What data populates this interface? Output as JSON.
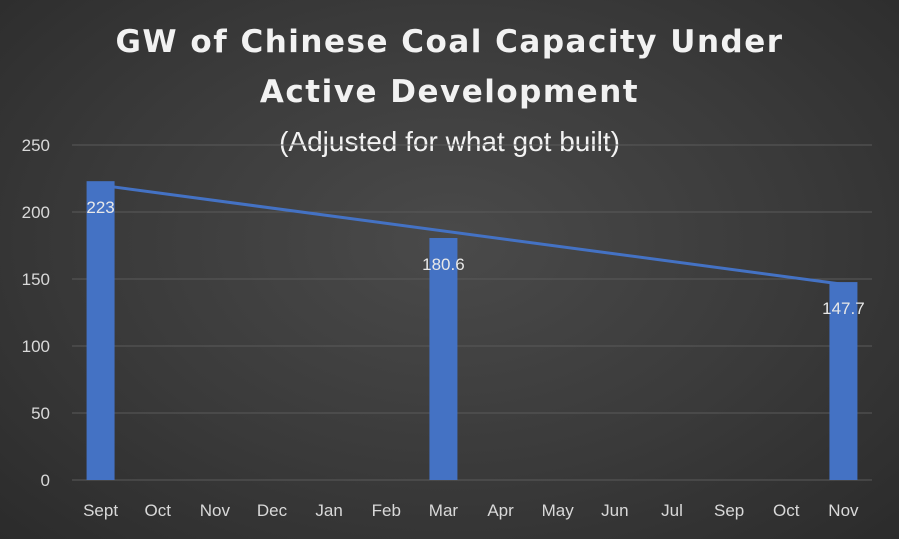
{
  "chart_data": {
    "type": "bar",
    "title_line1": "GW of Chinese Coal Capacity Under",
    "title_line2": "Active Development",
    "subtitle": "(Adjusted for what got built)",
    "xlabel": "",
    "ylabel": "",
    "categories": [
      "Sept",
      "Oct",
      "Nov",
      "Dec",
      "Jan",
      "Feb",
      "Mar",
      "Apr",
      "May",
      "Jun",
      "Jul",
      "Sep",
      "Oct",
      "Nov"
    ],
    "series": [
      {
        "values": [
          223,
          null,
          null,
          null,
          null,
          null,
          180.6,
          null,
          null,
          null,
          null,
          null,
          null,
          147.7
        ]
      }
    ],
    "data_labels": [
      "223",
      "",
      "",
      "",
      "",
      "",
      "180.6",
      "",
      "",
      "",
      "",
      "",
      "",
      "147.7"
    ],
    "trendline": {
      "type": "linear",
      "start": 220,
      "end": 146
    },
    "ylim": [
      0,
      250
    ],
    "yticks": [
      0,
      50,
      100,
      150,
      200,
      250
    ],
    "grid": true,
    "legend": "none",
    "colors": {
      "bar": "#4472c4",
      "trend": "#4472c4",
      "grid": "#5a5a5a",
      "text": "#d9d9d9"
    }
  }
}
